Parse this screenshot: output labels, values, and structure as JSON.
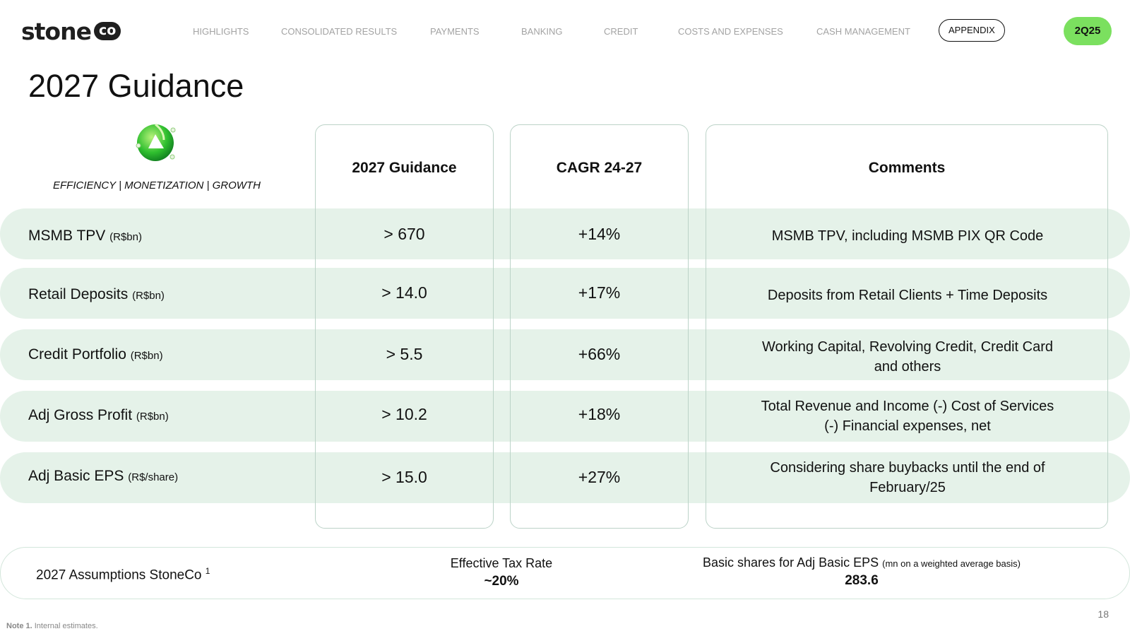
{
  "header": {
    "logo_word": "stone",
    "logo_co": "co",
    "nav": [
      {
        "label": "HIGHLIGHTS"
      },
      {
        "label": "CONSOLIDATED RESULTS"
      },
      {
        "label": "PAYMENTS"
      },
      {
        "label": "BANKING"
      },
      {
        "label": "CREDIT"
      },
      {
        "label": "COSTS AND EXPENSES"
      },
      {
        "label": "CASH MANAGEMENT"
      },
      {
        "label": "APPENDIX"
      }
    ],
    "active_nav": "APPENDIX",
    "badge": "2Q25"
  },
  "title": "2027 Guidance",
  "tagline": "EFFICIENCY | MONETIZATION | GROWTH",
  "columns": {
    "guidance": "2027 Guidance",
    "cagr": "CAGR 24-27",
    "comments": "Comments"
  },
  "rows": [
    {
      "label": "MSMB TPV",
      "unit": "(R$bn)",
      "guidance": "> 670",
      "cagr": "+14%",
      "comment": [
        "MSMB TPV, including MSMB PIX QR Code"
      ]
    },
    {
      "label": "Retail Deposits",
      "unit": "(R$bn)",
      "guidance": "> 14.0",
      "cagr": "+17%",
      "comment": [
        "Deposits from Retail Clients + Time Deposits"
      ]
    },
    {
      "label": "Credit Portfolio",
      "unit": "(R$bn)",
      "guidance": "> 5.5",
      "cagr": "+66%",
      "comment": [
        "Working Capital, Revolving Credit, Credit Card",
        "and others"
      ]
    },
    {
      "label": "Adj Gross Profit",
      "unit": "(R$bn)",
      "guidance": "> 10.2",
      "cagr": "+18%",
      "comment": [
        "Total Revenue and Income (-) Cost of Services",
        "(-) Financial expenses, net"
      ]
    },
    {
      "label": "Adj Basic EPS",
      "unit": "(R$/share)",
      "guidance": "> 15.0",
      "cagr": "+27%",
      "comment": [
        "Considering share buybacks until the end of",
        "February/25"
      ]
    }
  ],
  "assumptions": {
    "label": "2027 Assumptions StoneCo",
    "footnote_ref": "1",
    "tax_label": "Effective Tax Rate",
    "tax_value": "~20%",
    "shares_label": "Basic shares for Adj Basic EPS",
    "shares_qualifier": "(mn on a weighted average basis)",
    "shares_value": "283.6"
  },
  "page_number": "18",
  "footnote": {
    "prefix": "Note 1.",
    "text": "Internal estimates."
  },
  "colors": {
    "accent_green": "#7be05f",
    "row_band": "#e5f2e9",
    "box_border": "#bcd3c8"
  },
  "icons": {
    "emblem": "green-triangle-cycle-icon"
  }
}
